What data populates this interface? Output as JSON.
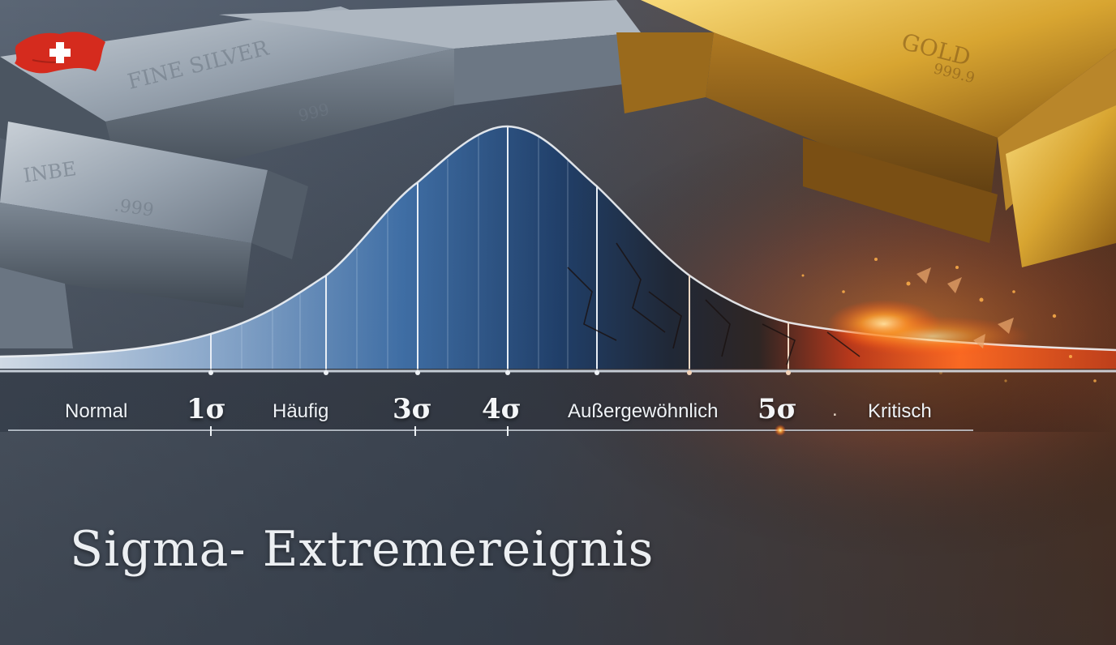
{
  "headline": "Sigma- Extremereignis",
  "scale": {
    "normal": "Normal",
    "sigma1": "1σ",
    "haeufig": "Häufig",
    "sigma3": "3σ",
    "sigma4": "4σ",
    "aussergewoehnlich": "Außergewöhnlich",
    "sigma5": "5σ",
    "separator": ".",
    "kritisch": "Kritisch"
  },
  "bar_engravings": {
    "silver_bar_1": "FINE SILVER",
    "silver_bar_1_purity": "999",
    "silver_bar_2": "INBE",
    "silver_bar_2_purity": ".999",
    "gold_bar": "GOLD",
    "gold_bar_purity": "999.9"
  },
  "colors": {
    "silver": "#8f9aa6",
    "steel_blue": "#2c5b8f",
    "gold": "#d8a531",
    "critical_orange": "#ff5a1f",
    "flag_red": "#d52b1e"
  },
  "icons": {
    "flag": "swiss-flag-icon"
  }
}
